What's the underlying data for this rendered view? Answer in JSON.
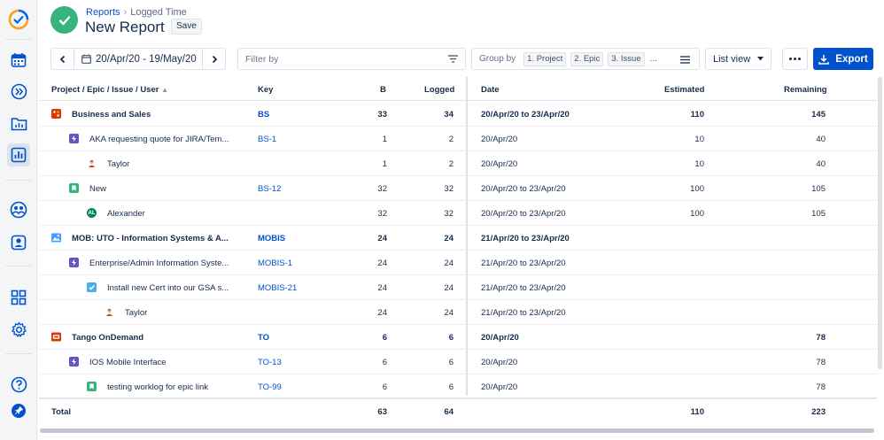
{
  "breadcrumb": {
    "parent": "Reports",
    "current": "Logged Time"
  },
  "page_title": "New Report",
  "save_label": "Save",
  "date_range": "20/Apr/20 - 19/May/20",
  "filter_placeholder": "Filter by",
  "group_by": {
    "label": "Group by",
    "chips": [
      "1. Project",
      "2. Epic",
      "3. Issue"
    ],
    "more": "..."
  },
  "view_mode": "List view",
  "export_label": "Export",
  "columns": {
    "name": "Project / Epic / Issue / User",
    "key": "Key",
    "b": "B",
    "logged": "Logged",
    "date": "Date",
    "estimated": "Estimated",
    "remaining": "Remaining"
  },
  "rows": [
    {
      "level": 0,
      "icon": "project-icon",
      "name": "Business and Sales",
      "key": "BS",
      "b": "33",
      "logged": "34",
      "date": "20/Apr/20 to 23/Apr/20",
      "estimated": "110",
      "remaining": "145"
    },
    {
      "level": 1,
      "icon": "epic-icon",
      "name": "AKA requesting quote for JIRA/Tem...",
      "key": "BS-1",
      "b": "1",
      "logged": "2",
      "date": "20/Apr/20",
      "estimated": "10",
      "remaining": "40"
    },
    {
      "level": 2,
      "icon": "user-avatar-icon",
      "name": "Taylor",
      "key": "",
      "b": "1",
      "logged": "2",
      "date": "20/Apr/20",
      "estimated": "10",
      "remaining": "40"
    },
    {
      "level": 1,
      "icon": "story-icon",
      "name": "New",
      "key": "BS-12",
      "b": "32",
      "logged": "32",
      "date": "20/Apr/20 to 23/Apr/20",
      "estimated": "100",
      "remaining": "105"
    },
    {
      "level": 2,
      "icon": "user-initials-icon",
      "initials": "AL",
      "name": "Alexander",
      "key": "",
      "b": "32",
      "logged": "32",
      "date": "20/Apr/20 to 23/Apr/20",
      "estimated": "100",
      "remaining": "105"
    },
    {
      "level": 0,
      "icon": "project-image-icon",
      "name": "MOB: UTO - Information Systems & A...",
      "key": "MOBIS",
      "b": "24",
      "logged": "24",
      "date": "21/Apr/20 to 23/Apr/20",
      "estimated": "",
      "remaining": ""
    },
    {
      "level": 1,
      "icon": "epic-icon",
      "name": "Enterprise/Admin Information Syste...",
      "key": "MOBIS-1",
      "b": "24",
      "logged": "24",
      "date": "21/Apr/20 to 23/Apr/20",
      "estimated": "",
      "remaining": ""
    },
    {
      "level": 2,
      "icon": "task-icon",
      "name": "Install new Cert into our GSA s...",
      "key": "MOBIS-21",
      "b": "24",
      "logged": "24",
      "date": "21/Apr/20 to 23/Apr/20",
      "estimated": "",
      "remaining": ""
    },
    {
      "level": 3,
      "icon": "user-avatar-icon",
      "name": "Taylor",
      "key": "",
      "b": "24",
      "logged": "24",
      "date": "21/Apr/20 to 23/Apr/20",
      "estimated": "",
      "remaining": ""
    },
    {
      "level": 0,
      "icon": "project-tango-icon",
      "name": "Tango OnDemand",
      "key": "TO",
      "b": "6",
      "logged": "6",
      "date": "20/Apr/20",
      "estimated": "",
      "remaining": "78"
    },
    {
      "level": 1,
      "icon": "epic-icon",
      "name": "IOS Mobile Interface",
      "key": "TO-13",
      "b": "6",
      "logged": "6",
      "date": "20/Apr/20",
      "estimated": "",
      "remaining": "78"
    },
    {
      "level": 2,
      "icon": "story-icon",
      "name": "testing worklog for epic link",
      "key": "TO-99",
      "b": "6",
      "logged": "6",
      "date": "20/Apr/20",
      "estimated": "",
      "remaining": "78"
    }
  ],
  "total": {
    "label": "Total",
    "b": "63",
    "logged": "64",
    "estimated": "110",
    "remaining": "223"
  },
  "colors": {
    "accent": "#0052cc",
    "success": "#36b37e",
    "epic": "#6554c0",
    "story": "#36b37e",
    "task": "#4bade8",
    "project_red": "#de350b"
  }
}
